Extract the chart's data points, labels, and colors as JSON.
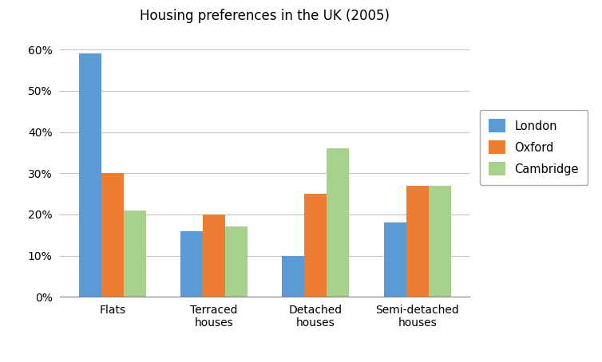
{
  "title": "Housing preferences in the UK (2005)",
  "categories": [
    "Flats",
    "Terraced\nhouses",
    "Detached\nhouses",
    "Semi-detached\nhouses"
  ],
  "series": {
    "London": [
      0.59,
      0.16,
      0.1,
      0.18
    ],
    "Oxford": [
      0.3,
      0.2,
      0.25,
      0.27
    ],
    "Cambridge": [
      0.21,
      0.17,
      0.36,
      0.27
    ]
  },
  "colors": {
    "London": "#5b9bd5",
    "Oxford": "#ed7d31",
    "Cambridge": "#a9d18e"
  },
  "ylim": [
    0,
    0.65
  ],
  "yticks": [
    0.0,
    0.1,
    0.2,
    0.3,
    0.4,
    0.5,
    0.6
  ],
  "legend_labels": [
    "London",
    "Oxford",
    "Cambridge"
  ],
  "bar_width": 0.22,
  "background_color": "#ffffff",
  "title_fontsize": 12,
  "tick_fontsize": 10,
  "legend_fontsize": 10.5
}
